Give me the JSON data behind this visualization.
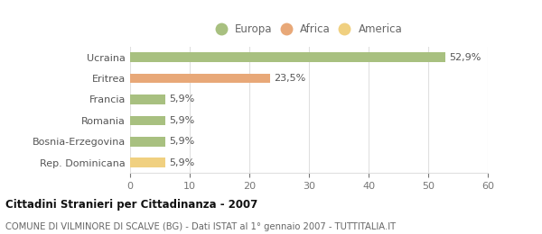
{
  "categories": [
    "Rep. Dominicana",
    "Bosnia-Erzegovina",
    "Romania",
    "Francia",
    "Eritrea",
    "Ucraina"
  ],
  "values": [
    5.9,
    5.9,
    5.9,
    5.9,
    23.5,
    52.9
  ],
  "colors": [
    "#f0d080",
    "#a8c080",
    "#a8c080",
    "#a8c080",
    "#e8a878",
    "#a8c080"
  ],
  "bar_labels": [
    "5,9%",
    "5,9%",
    "5,9%",
    "5,9%",
    "23,5%",
    "52,9%"
  ],
  "legend": [
    {
      "label": "Europa",
      "color": "#a8c080"
    },
    {
      "label": "Africa",
      "color": "#e8a878"
    },
    {
      "label": "America",
      "color": "#f0d080"
    }
  ],
  "xlim": [
    0,
    60
  ],
  "xticks": [
    0,
    10,
    20,
    30,
    40,
    50,
    60
  ],
  "title_bold": "Cittadini Stranieri per Cittadinanza - 2007",
  "subtitle": "COMUNE DI VILMINORE DI SCALVE (BG) - Dati ISTAT al 1° gennaio 2007 - TUTTITALIA.IT",
  "background_color": "#ffffff",
  "grid_color": "#e0e0e0"
}
